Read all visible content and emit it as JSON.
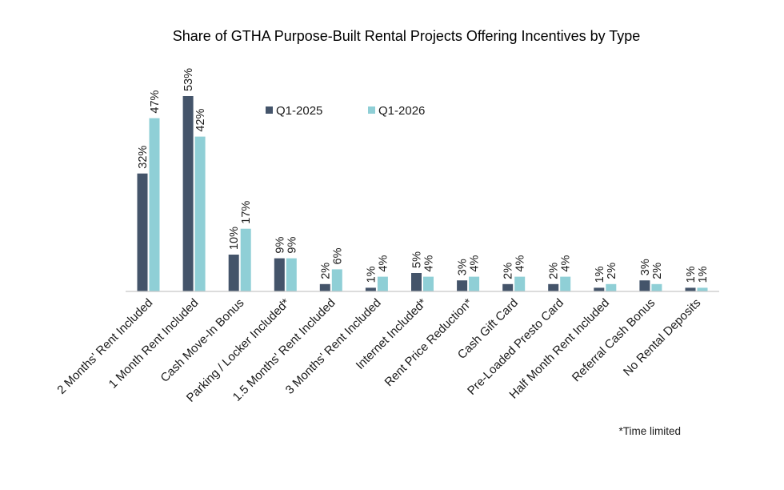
{
  "chart_data": {
    "type": "bar",
    "title": "Share of GTHA Purpose-Built Rental Projects Offering Incentives by Type",
    "xlabel": "",
    "ylabel": "",
    "ylim": [
      0,
      53
    ],
    "grid": false,
    "legend_position": "top-center",
    "categories": [
      "2 Months' Rent Included",
      "1 Month Rent Included",
      "Cash Move-In Bonus",
      "Parking / Locker Included*",
      "1.5 Months' Rent Included",
      "3 Months' Rent Included",
      "Internet Included*",
      "Rent Price Reduction*",
      "Cash Gift Card",
      "Pre-Loaded Presto Card",
      "Half Month Rent Included",
      "Referral Cash Bonus",
      "No Rental Deposits"
    ],
    "series": [
      {
        "name": "Q1-2025",
        "color": "#44546a",
        "values": [
          32,
          53,
          10,
          9,
          2,
          1,
          5,
          3,
          2,
          2,
          1,
          3,
          1
        ]
      },
      {
        "name": "Q1-2026",
        "color": "#8fcfd6",
        "values": [
          47,
          42,
          17,
          9,
          6,
          4,
          4,
          4,
          4,
          4,
          2,
          2,
          1
        ]
      }
    ],
    "value_suffix": "%",
    "footnote": "*Time limited"
  }
}
